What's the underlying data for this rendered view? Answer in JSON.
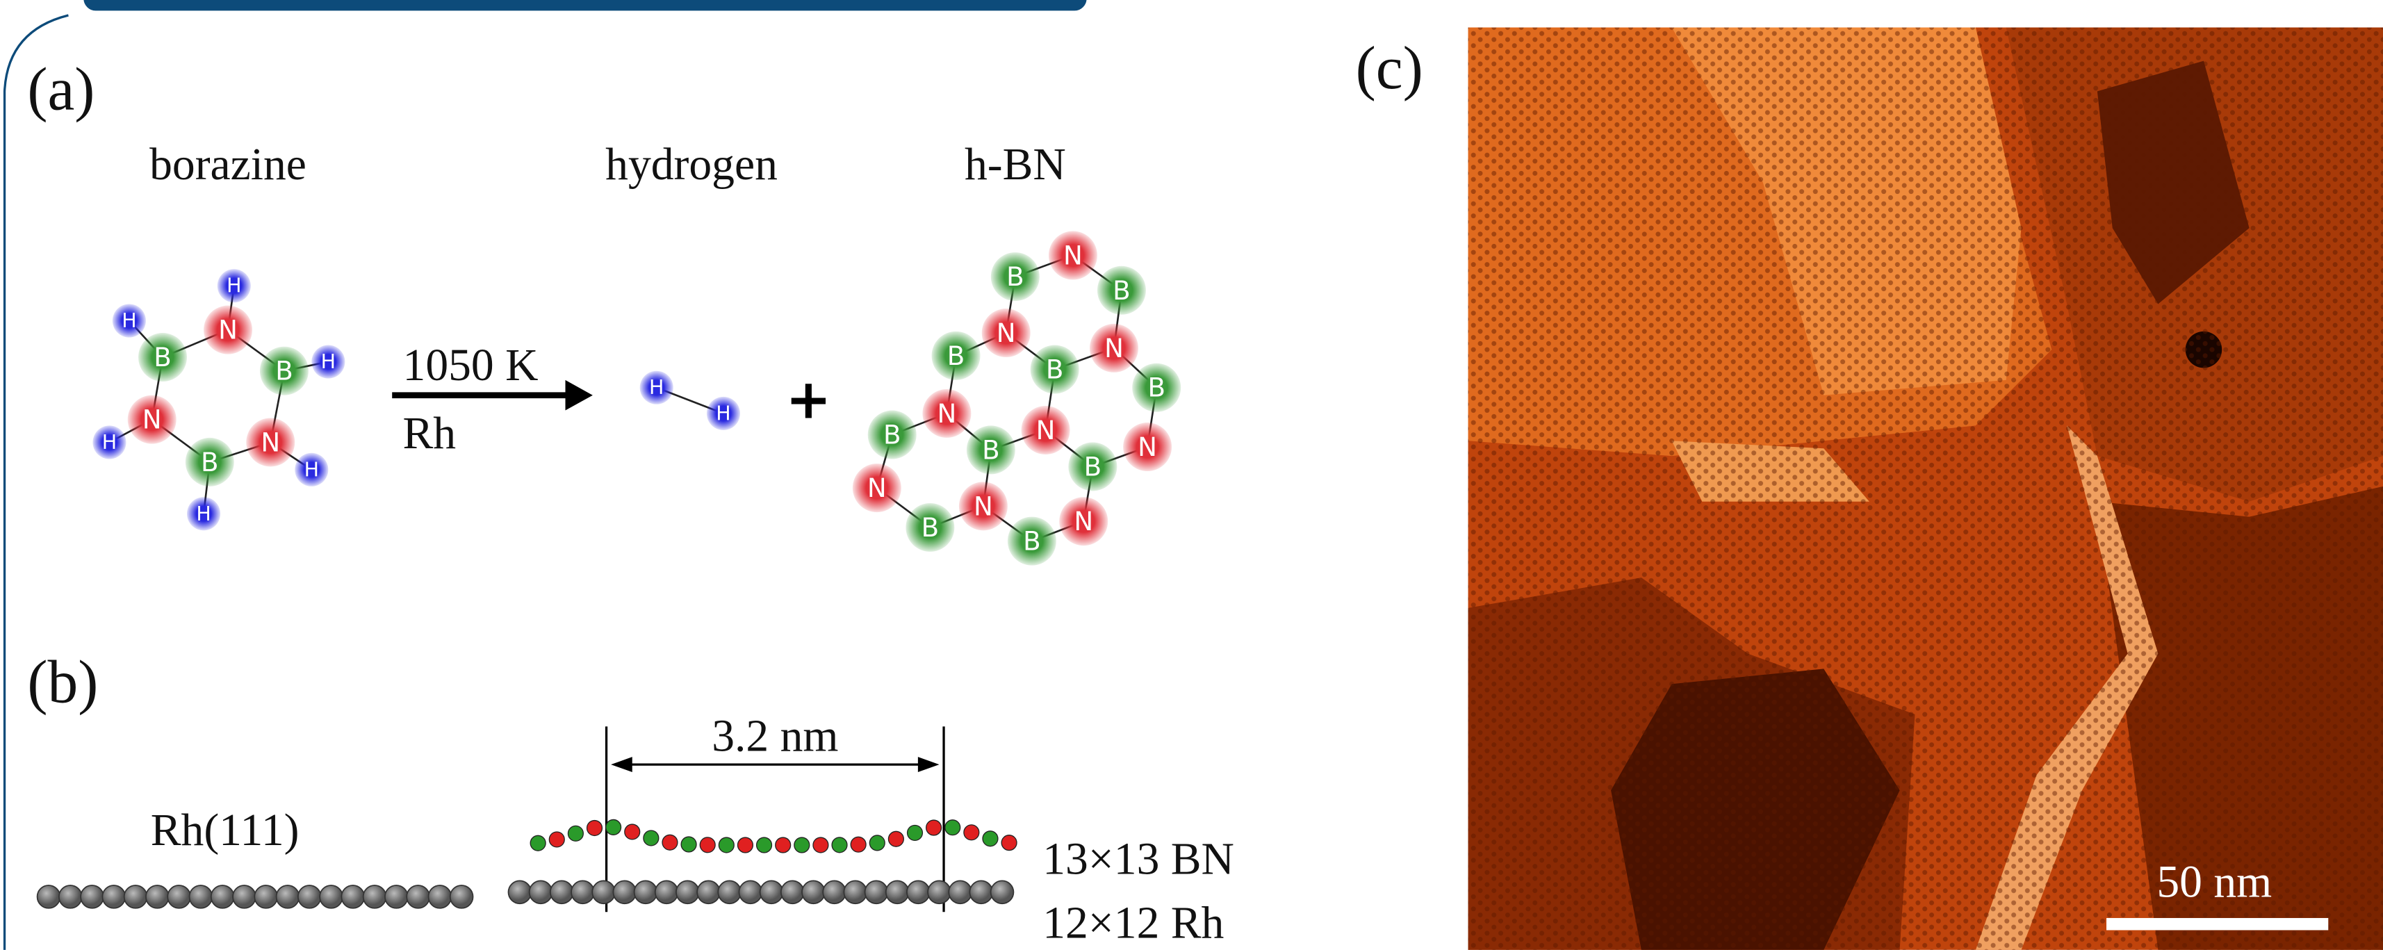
{
  "panels": {
    "a": {
      "label": "(a)",
      "titles": [
        "borazine",
        "hydrogen",
        "h-BN"
      ],
      "condition": "1050 K",
      "catalyst": "Rh",
      "plus": "+",
      "borazine": [
        "N",
        "B",
        "B",
        "N",
        "N",
        "B",
        "H",
        "H",
        "H",
        "H",
        "H",
        "H"
      ],
      "hydrogen": [
        "H",
        "H"
      ],
      "hbn": [
        "N",
        "B",
        "B",
        "N",
        "N",
        "B",
        "B",
        "B",
        "N",
        "N",
        "B",
        "B",
        "B",
        "N",
        "N",
        "N",
        "B",
        "B",
        "N"
      ]
    },
    "b": {
      "label": "(b)",
      "spacing": "3.2 nm",
      "substrate": "Rh(111)",
      "layers": [
        "13×13 BN",
        "12×12 Rh"
      ]
    },
    "c": {
      "label": "(c)",
      "scale_bar": "50 nm"
    }
  }
}
